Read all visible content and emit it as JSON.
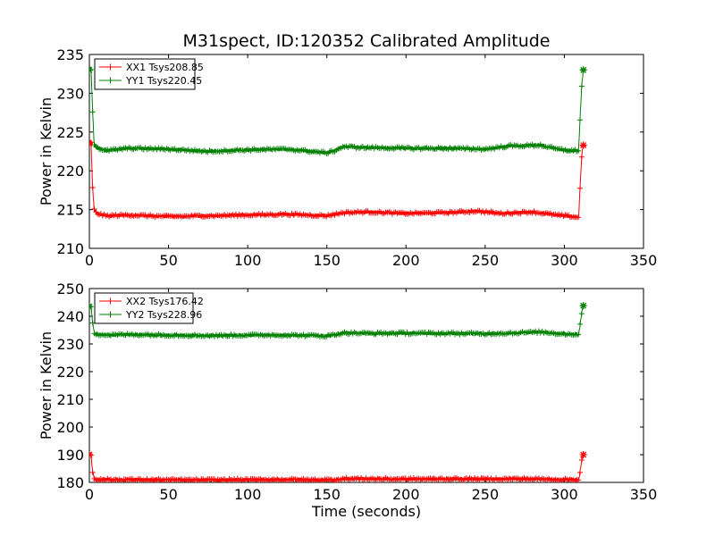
{
  "figure": {
    "title": "M31spect, ID:120352 Calibrated Amplitude",
    "xlabel": "Time (seconds)"
  },
  "colors": {
    "red": "#ff0000",
    "green": "#008000"
  },
  "chart_data": [
    {
      "type": "line",
      "title": "M31spect, ID:120352 Calibrated Amplitude",
      "xlabel": "",
      "ylabel": "Power in Kelvin",
      "xlim": [
        0,
        350
      ],
      "ylim": [
        210,
        235
      ],
      "x_ticks": [
        "0",
        "50",
        "100",
        "150",
        "200",
        "250",
        "300",
        "350"
      ],
      "y_ticks": [
        "210",
        "215",
        "220",
        "225",
        "230",
        "235"
      ],
      "grid": false,
      "legend": "top-left",
      "series": [
        {
          "name": "XX1 Tsys208.85",
          "color": "#ff0000",
          "x": [
            0,
            1,
            2,
            3,
            5,
            10,
            25,
            50,
            75,
            100,
            125,
            150,
            155,
            160,
            175,
            200,
            225,
            245,
            260,
            280,
            295,
            305,
            309,
            310,
            311,
            312
          ],
          "y": [
            223.5,
            223.8,
            218,
            215,
            214.5,
            214.2,
            214.3,
            214.1,
            214.2,
            214.3,
            214.4,
            214.2,
            214.4,
            214.6,
            214.7,
            214.5,
            214.6,
            214.8,
            214.5,
            214.7,
            214.3,
            214.1,
            214.0,
            218.0,
            222.0,
            223.3
          ]
        },
        {
          "name": "YY1 Tsys220.45",
          "color": "#008000",
          "x": [
            0,
            1,
            2,
            3,
            5,
            10,
            25,
            50,
            75,
            100,
            125,
            150,
            155,
            160,
            175,
            200,
            225,
            250,
            265,
            285,
            295,
            305,
            309,
            310,
            311,
            312
          ],
          "y": [
            233.0,
            233.4,
            228,
            223.5,
            223.0,
            222.6,
            222.9,
            222.8,
            222.5,
            222.7,
            222.8,
            222.3,
            222.6,
            223.1,
            223.0,
            222.9,
            222.9,
            222.8,
            223.2,
            223.3,
            222.8,
            222.6,
            222.6,
            227.0,
            231.0,
            233.0
          ]
        }
      ]
    },
    {
      "type": "line",
      "title": "",
      "xlabel": "Time (seconds)",
      "ylabel": "Power in Kelvin",
      "xlim": [
        0,
        350
      ],
      "ylim": [
        180,
        250
      ],
      "x_ticks": [
        "0",
        "50",
        "100",
        "150",
        "200",
        "250",
        "300",
        "350"
      ],
      "y_ticks": [
        "180",
        "190",
        "200",
        "210",
        "220",
        "230",
        "240",
        "250"
      ],
      "grid": false,
      "legend": "top-left",
      "series": [
        {
          "name": "XX2 Tsys176.42",
          "color": "#ff0000",
          "x": [
            0,
            1,
            2,
            3,
            5,
            10,
            25,
            50,
            75,
            100,
            125,
            150,
            155,
            160,
            175,
            200,
            225,
            250,
            275,
            300,
            305,
            309,
            310,
            311,
            312
          ],
          "y": [
            190.0,
            190.3,
            184,
            181.5,
            181.0,
            181.0,
            181.0,
            180.9,
            180.9,
            181.0,
            181.0,
            180.9,
            181.0,
            181.3,
            181.3,
            181.2,
            181.3,
            181.2,
            181.3,
            181.0,
            181.0,
            181.0,
            184.0,
            188.0,
            190.0
          ]
        },
        {
          "name": "YY2 Tsys228.96",
          "color": "#008000",
          "x": [
            0,
            1,
            2,
            3,
            5,
            10,
            25,
            50,
            75,
            100,
            125,
            150,
            155,
            160,
            175,
            200,
            225,
            250,
            270,
            285,
            300,
            305,
            309,
            310,
            311,
            312
          ],
          "y": [
            243.5,
            244.0,
            238,
            234.0,
            233.6,
            233.2,
            233.4,
            233.2,
            233.0,
            233.2,
            233.2,
            232.9,
            233.3,
            234.0,
            233.8,
            233.9,
            233.8,
            233.7,
            234.0,
            234.3,
            233.6,
            233.5,
            233.5,
            237.0,
            241.5,
            243.8
          ]
        }
      ]
    }
  ]
}
